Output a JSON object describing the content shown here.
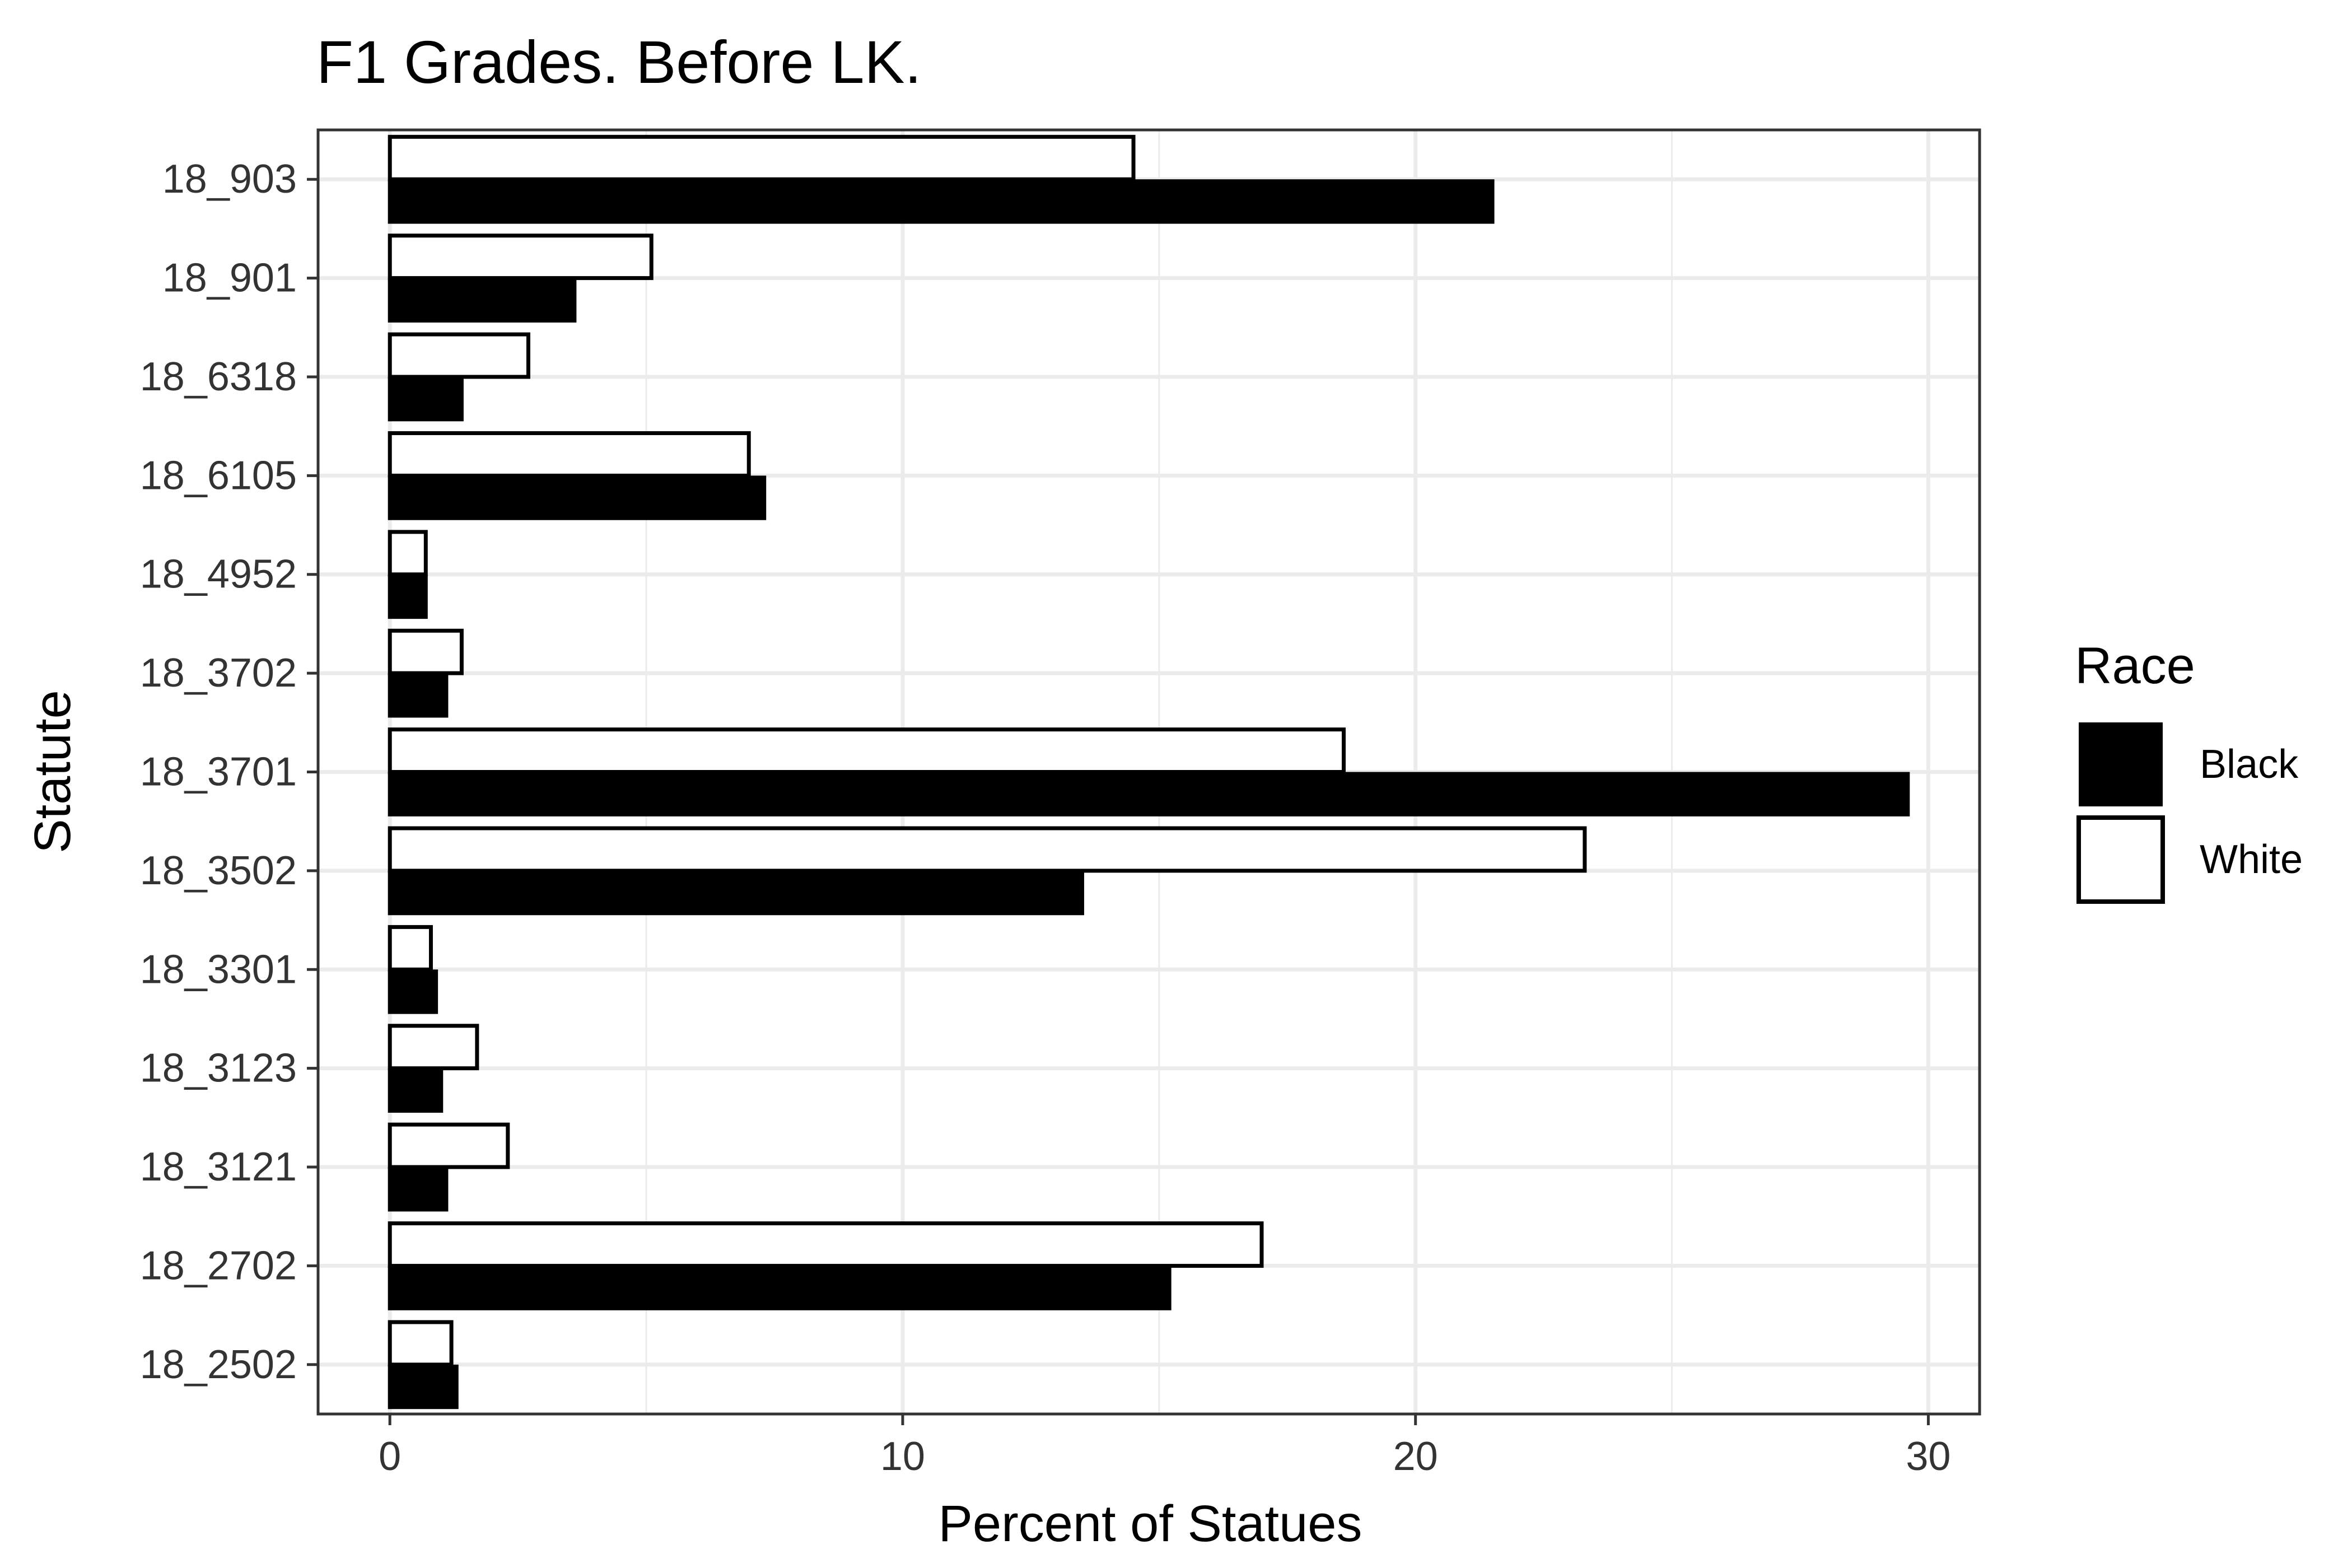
{
  "chart_data": {
    "type": "bar",
    "orientation": "horizontal",
    "title": "F1 Grades. Before LK.",
    "xlabel": "Percent of Statues",
    "ylabel": "Statute",
    "xlim": [
      -1.4,
      31
    ],
    "xticks": [
      0,
      10,
      20,
      30
    ],
    "grid": true,
    "legend": {
      "title": "Race",
      "placement": "right"
    },
    "categories": [
      "18_903",
      "18_901",
      "18_6318",
      "18_6105",
      "18_4952",
      "18_3702",
      "18_3701",
      "18_3502",
      "18_3301",
      "18_3123",
      "18_3121",
      "18_2702",
      "18_2502"
    ],
    "series": [
      {
        "name": "Black",
        "color": "#000000",
        "fill": "#000000",
        "values": [
          21.5,
          3.6,
          1.4,
          7.3,
          0.7,
          1.1,
          29.6,
          13.5,
          0.9,
          1.0,
          1.1,
          15.2,
          1.3
        ]
      },
      {
        "name": "White",
        "color": "#000000",
        "fill": "#ffffff",
        "values": [
          14.5,
          5.1,
          2.7,
          7.0,
          0.7,
          1.4,
          18.6,
          23.3,
          0.8,
          1.7,
          2.3,
          17.0,
          1.2
        ]
      }
    ]
  }
}
